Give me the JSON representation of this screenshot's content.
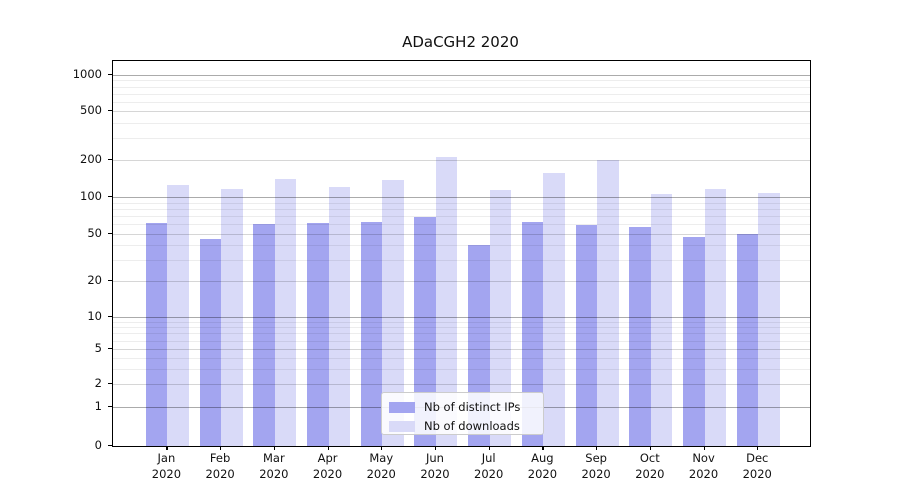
{
  "chart_data": {
    "type": "bar",
    "title": "ADaCGH2 2020",
    "categories": [
      "Jan",
      "Feb",
      "Mar",
      "Apr",
      "May",
      "Jun",
      "Jul",
      "Aug",
      "Sep",
      "Oct",
      "Nov",
      "Dec"
    ],
    "year_label": "2020",
    "series": [
      {
        "name": "Nb of distinct IPs",
        "color": "#a3a5f0",
        "values": [
          61,
          45,
          60,
          62,
          63,
          69,
          40,
          63,
          59,
          57,
          47,
          50
        ]
      },
      {
        "name": "Nb of downloads",
        "color": "#d9daf8",
        "values": [
          125,
          116,
          140,
          121,
          137,
          210,
          113,
          158,
          200,
          106,
          116,
          108
        ]
      }
    ],
    "yticks": [
      0,
      1,
      2,
      5,
      10,
      20,
      50,
      100,
      200,
      500,
      1000
    ],
    "ylim": [
      0,
      1000
    ],
    "yscale": "symlog",
    "xlabel": "",
    "ylabel": "",
    "grid": true,
    "legend_position": "lower center"
  }
}
